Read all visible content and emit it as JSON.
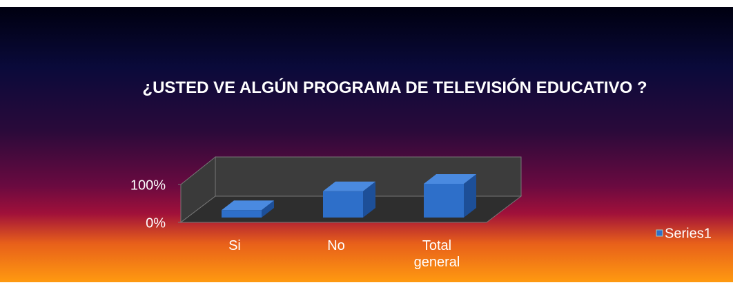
{
  "chart_data": {
    "type": "bar3d",
    "title": "¿USTED  VE ALGÚN  PROGRAMA  DE TELEVISIÓN EDUCATIVO ?",
    "categories": [
      "Si",
      "No",
      "Total general"
    ],
    "series": [
      {
        "name": "Series1",
        "color": "#2e6fc9",
        "values": [
          22,
          78,
          100
        ]
      }
    ],
    "ylim": [
      0,
      100
    ],
    "yticks": [
      {
        "value": 0,
        "label": "0%"
      },
      {
        "value": 100,
        "label": "100%"
      }
    ],
    "legend": "right"
  }
}
